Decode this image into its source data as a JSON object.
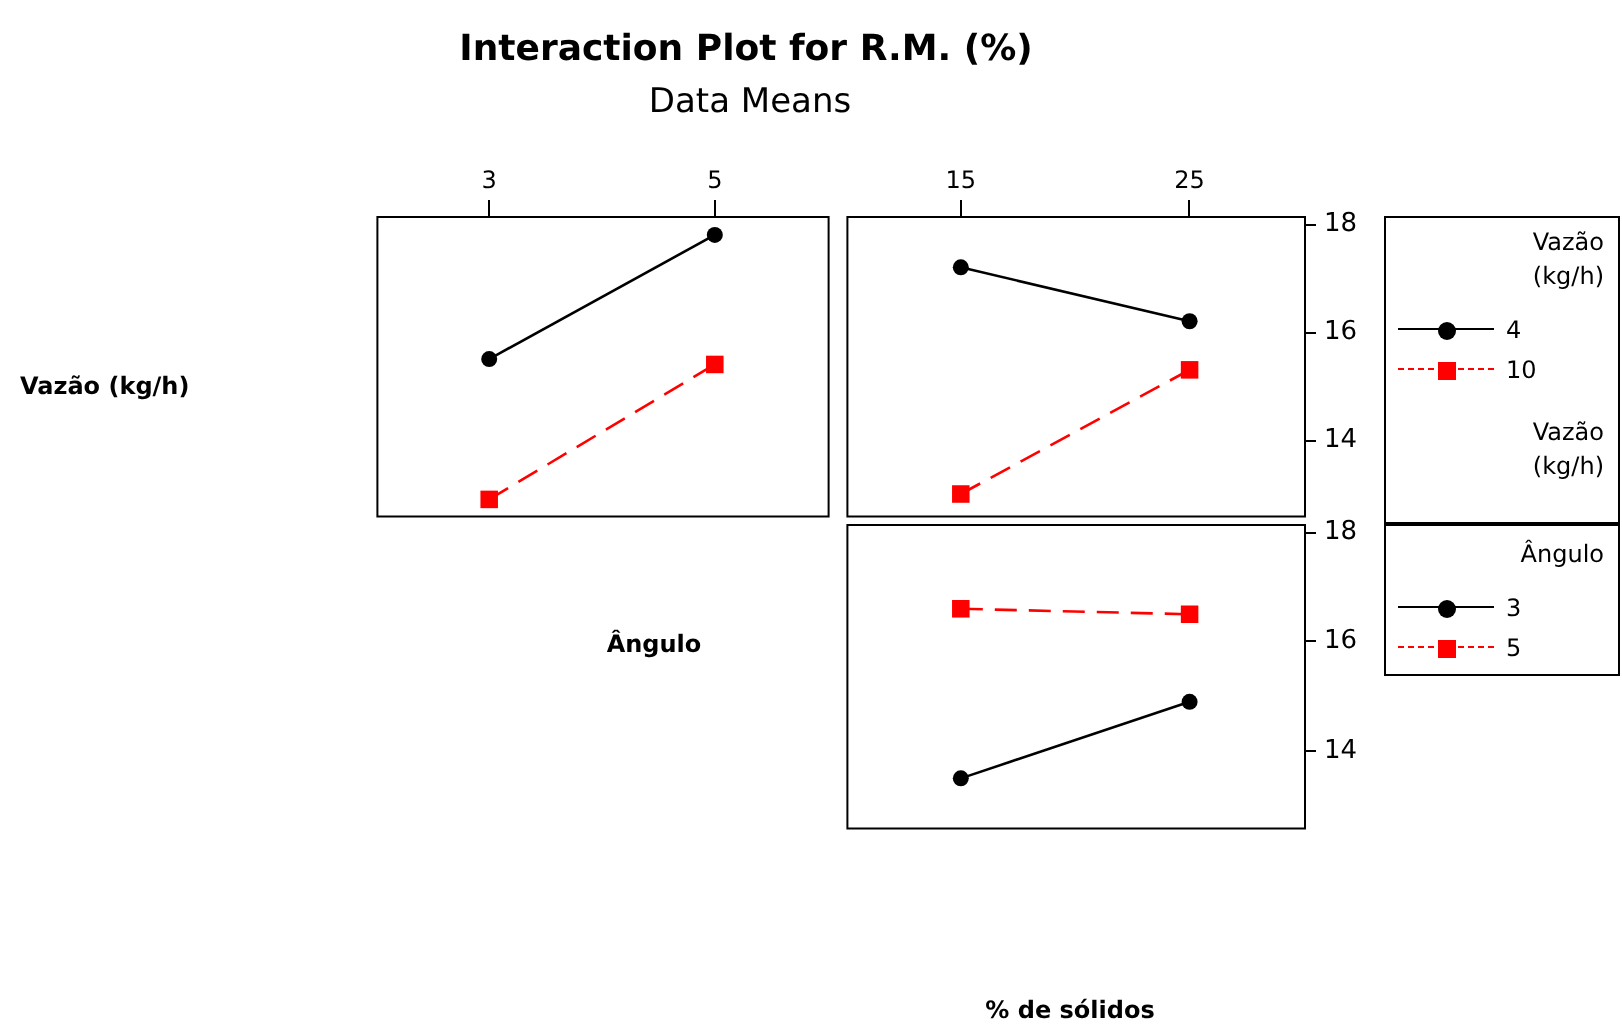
{
  "chart_data": [
    {
      "type": "line",
      "title": "Interaction Plot for R.M. (%)",
      "subtitle": "Data Means",
      "ylabel": "Vazão (kg/h)",
      "xlabel": "Ângulo",
      "legend_title": "Vazão (kg/h)",
      "legend": "right",
      "categories": [
        "3",
        "5"
      ],
      "series": [
        {
          "name": "4",
          "color": "#000000",
          "values": [
            15.5,
            17.8
          ],
          "marker": "circle",
          "line_style": "solid"
        },
        {
          "name": "10",
          "color": "#ff0000",
          "values": [
            12.9,
            15.4
          ],
          "marker": "square",
          "line_style": "dashed"
        }
      ],
      "ylim": [
        12.6,
        18.15
      ],
      "yticks": [
        14,
        16,
        18
      ],
      "tick_labels": "x"
    },
    {
      "type": "line",
      "legend_title": "Vazão (kg/h)",
      "categories": [
        "15",
        "25"
      ],
      "series": [
        {
          "color": "#000000",
          "values": [
            17.2,
            16.2
          ],
          "marker": "circle",
          "line_style": "solid"
        },
        {
          "color": "#ff0000",
          "values": [
            13.0,
            15.3
          ],
          "marker": "square",
          "line_style": "dashed"
        }
      ],
      "ylim": [
        12.6,
        18.15
      ],
      "yticks": [
        14,
        16,
        18
      ]
    },
    {
      "type": "line",
      "xlabel": "% de sólidos",
      "legend_title": "Ângulo",
      "legend": "right",
      "categories": [
        "15",
        "25"
      ],
      "series": [
        {
          "name": "3",
          "color": "#000000",
          "values": [
            13.5,
            14.9
          ],
          "marker": "circle",
          "line_style": "solid"
        },
        {
          "name": "5",
          "color": "#ff0000",
          "values": [
            16.6,
            16.5
          ],
          "marker": "square",
          "line_style": "dashed"
        }
      ],
      "ylim": [
        12.6,
        18.15
      ],
      "yticks": [
        14,
        16,
        18
      ],
      "tick_labels": "y"
    }
  ]
}
